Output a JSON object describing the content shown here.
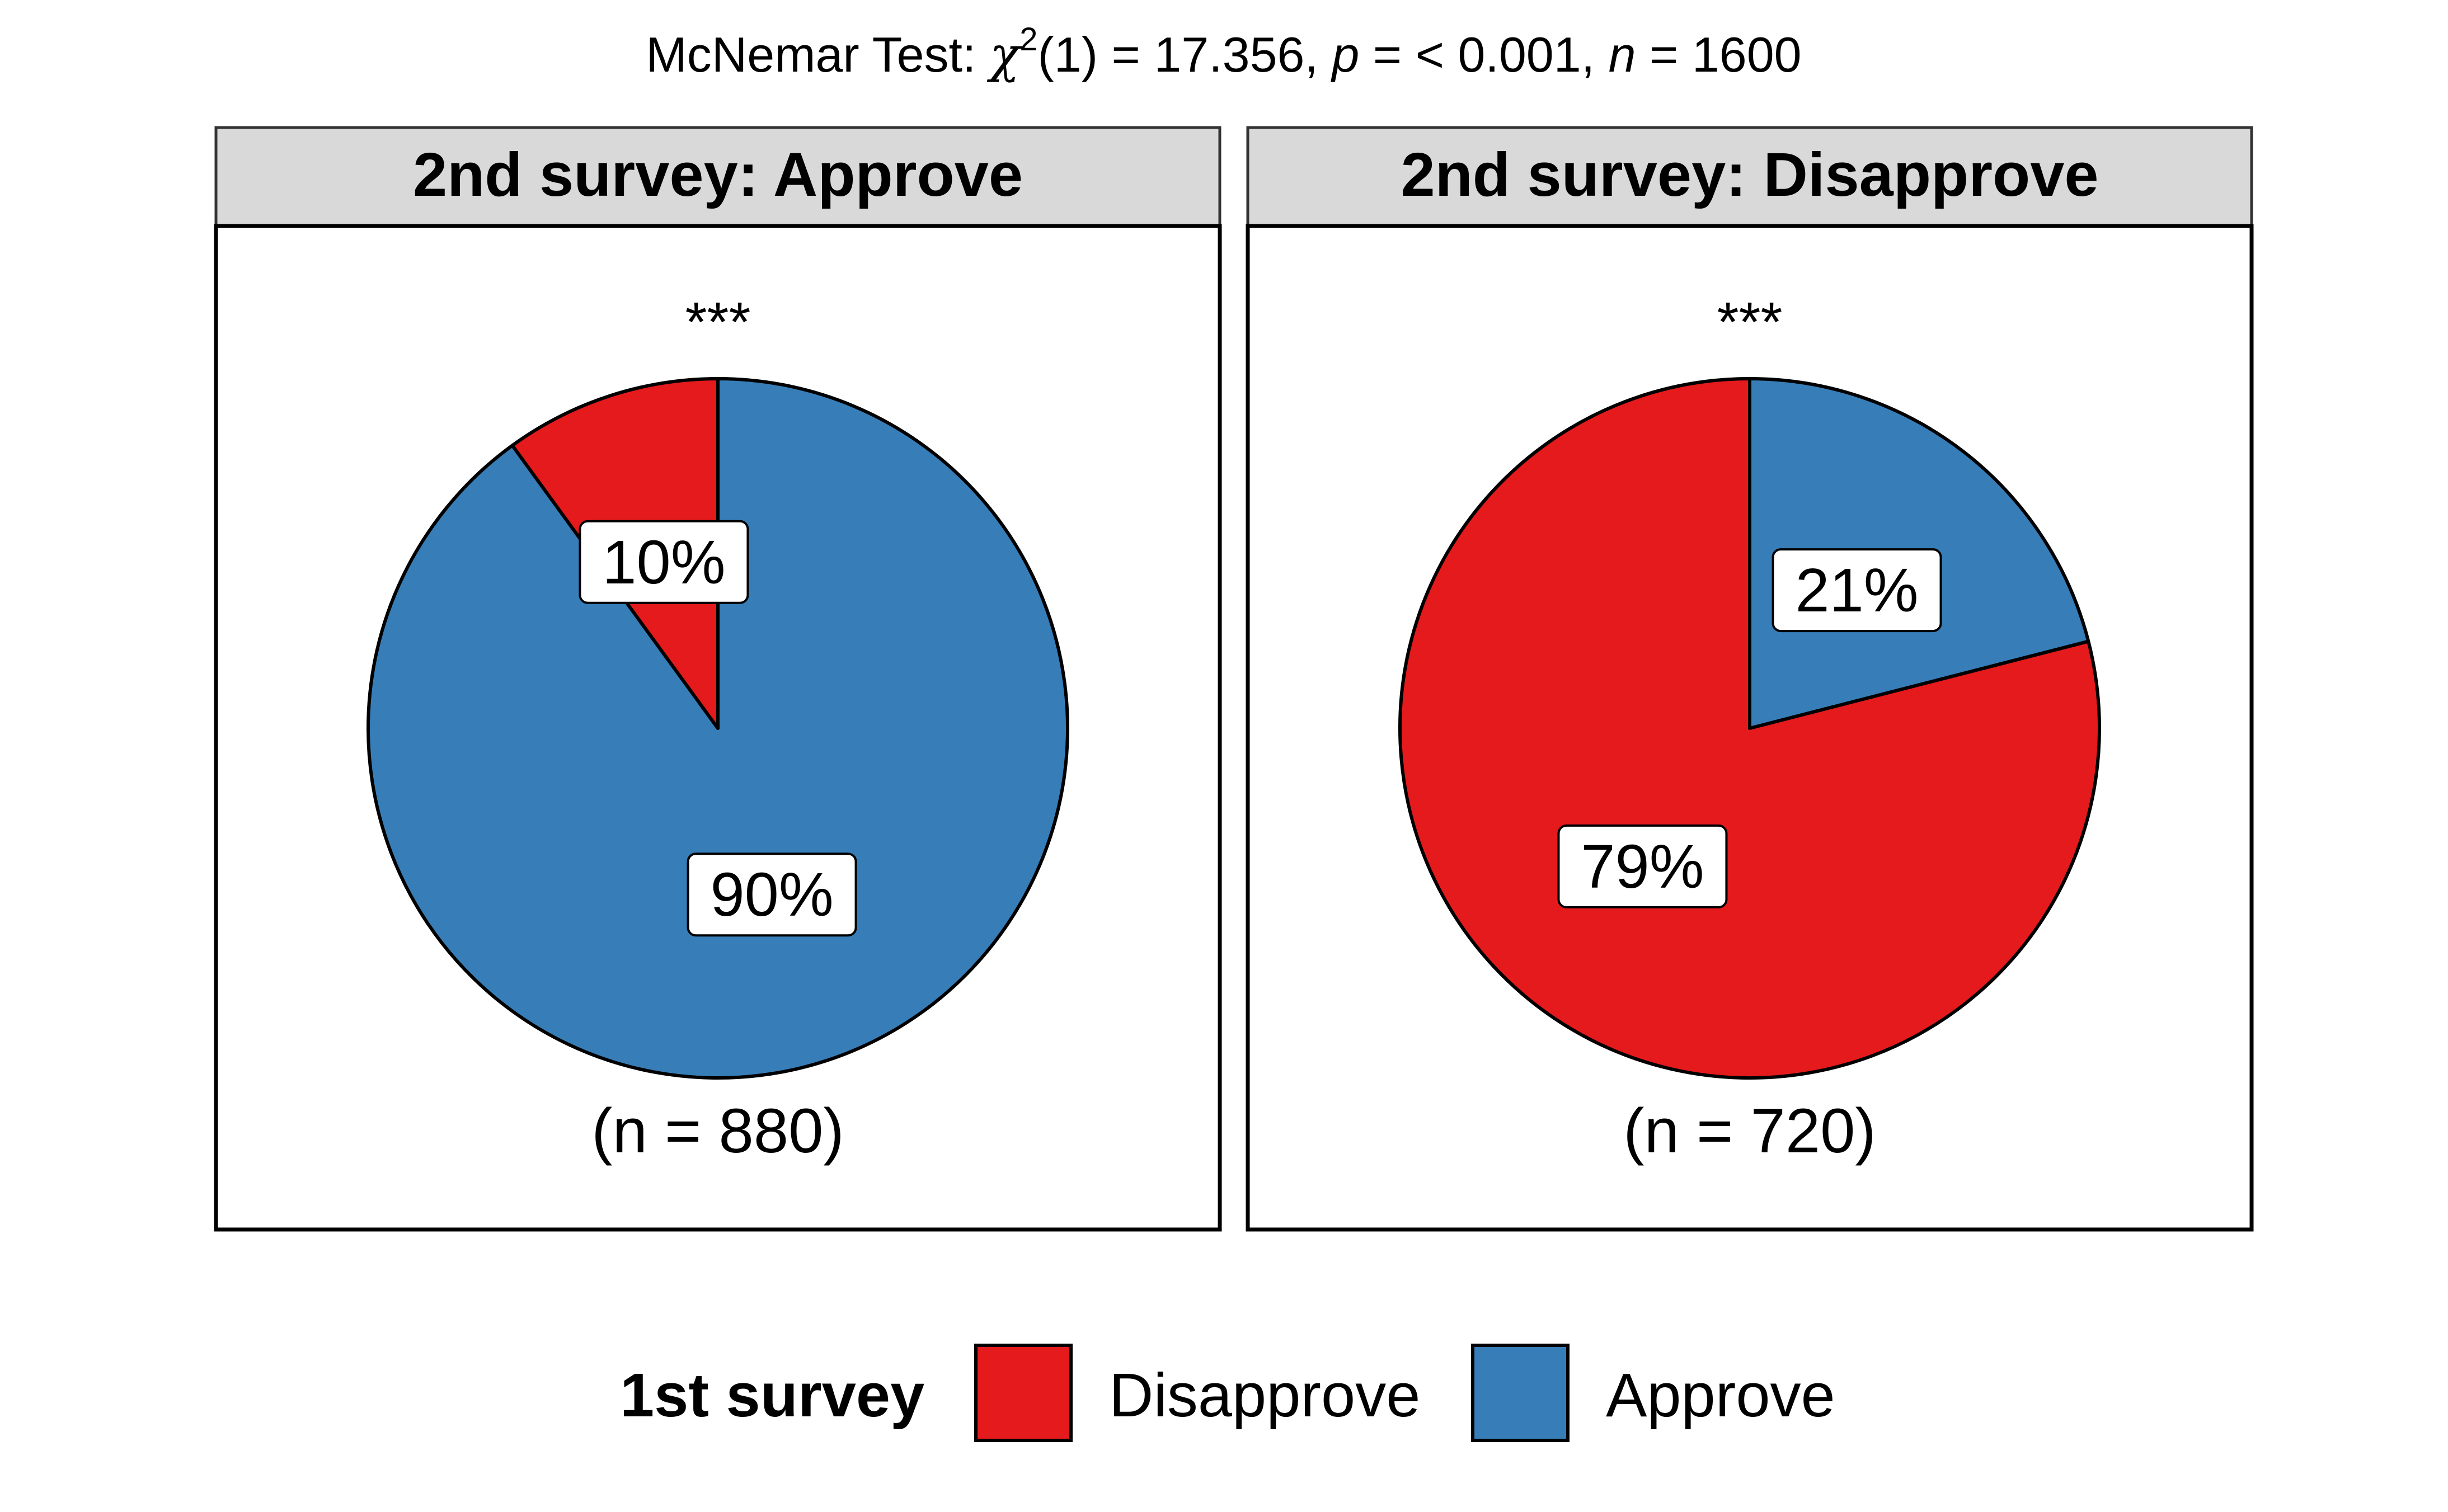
{
  "chart_data": {
    "type": "pie",
    "subtitle": {
      "prefix": "McNemar Test: ",
      "chi": "χ",
      "chi_exp": "2",
      "df": "(1) = 17.356, ",
      "p_sym": "p",
      "p_val": " = < 0.001, ",
      "n_sym": "n",
      "n_val": " = 1600"
    },
    "legend": {
      "title": "1st survey",
      "position": "bottom",
      "items": [
        {
          "label": "Disapprove",
          "color": "#E41A1C"
        },
        {
          "label": "Approve",
          "color": "#377EB8"
        }
      ]
    },
    "facets": [
      {
        "strip": "2nd survey: Approve",
        "significance": "***",
        "caption": "(n = 880)",
        "slices": [
          {
            "category": "Disapprove",
            "value": 10,
            "label": "10%",
            "color": "#E41A1C"
          },
          {
            "category": "Approve",
            "value": 90,
            "label": "90%",
            "color": "#377EB8"
          }
        ]
      },
      {
        "strip": "2nd survey: Disapprove",
        "significance": "***",
        "caption": "(n = 720)",
        "slices": [
          {
            "category": "Disapprove",
            "value": 79,
            "label": "79%",
            "color": "#E41A1C"
          },
          {
            "category": "Approve",
            "value": 21,
            "label": "21%",
            "color": "#377EB8"
          }
        ]
      }
    ]
  }
}
